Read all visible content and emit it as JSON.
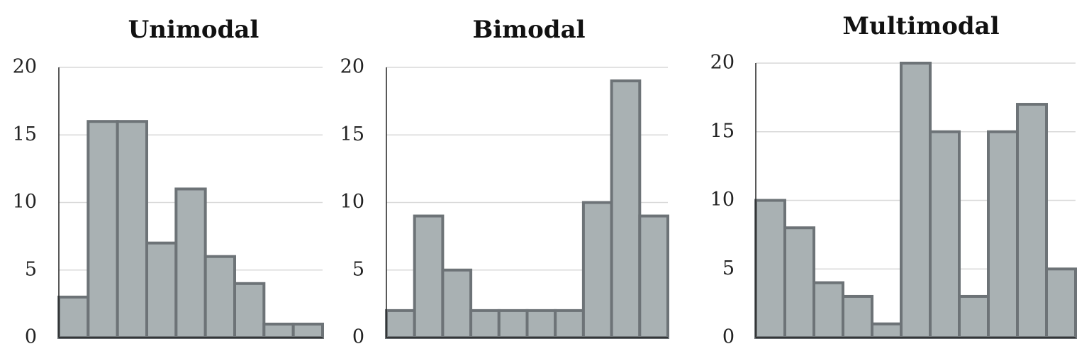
{
  "colors": {
    "bar_fill": "#a9b1b3",
    "bar_stroke": "#6d7377",
    "grid": "#d9d9d9",
    "axis": "#222222"
  },
  "chart_data": [
    {
      "type": "bar",
      "title": "Unimodal",
      "values": [
        3,
        16,
        16,
        7,
        11,
        6,
        4,
        1,
        1
      ],
      "ylim": [
        0,
        20
      ],
      "yticks": [
        "0",
        "5",
        "10",
        "15",
        "20"
      ],
      "xlabel": "",
      "ylabel": "",
      "grid": true
    },
    {
      "type": "bar",
      "title": "Bimodal",
      "values": [
        2,
        9,
        5,
        2,
        2,
        2,
        2,
        10,
        19,
        9
      ],
      "ylim": [
        0,
        20
      ],
      "yticks": [
        "0",
        "5",
        "10",
        "15",
        "20"
      ],
      "xlabel": "",
      "ylabel": "",
      "grid": true
    },
    {
      "type": "bar",
      "title": "Multimodal",
      "values": [
        10,
        8,
        4,
        3,
        1,
        20,
        15,
        3,
        15,
        17,
        5
      ],
      "ylim": [
        0,
        20
      ],
      "yticks": [
        "0",
        "5",
        "10",
        "15",
        "20"
      ],
      "xlabel": "",
      "ylabel": "",
      "grid": true
    }
  ]
}
